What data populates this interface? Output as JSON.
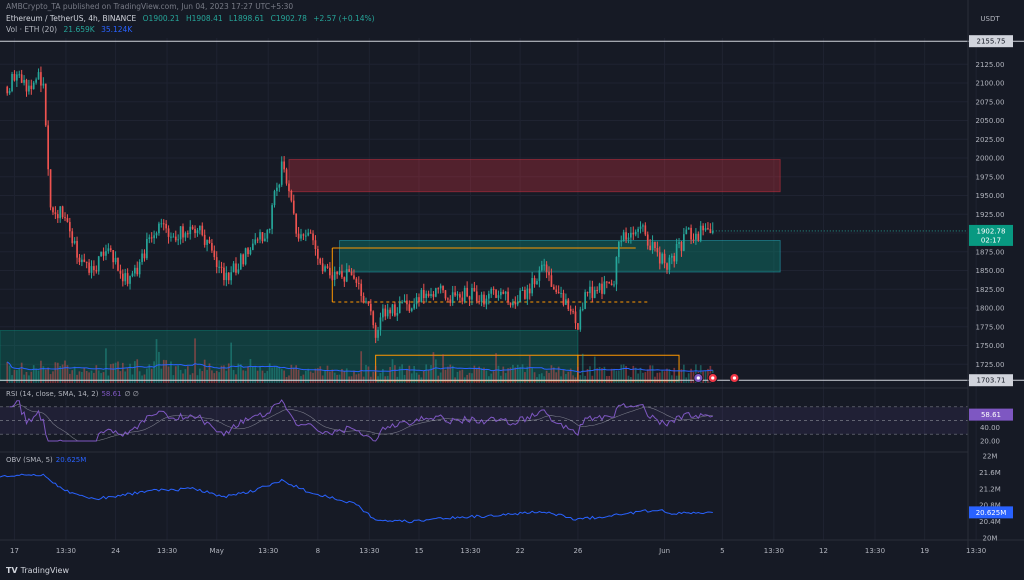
{
  "header": {
    "publisher": "AMBCrypto_TA published on TradingView.com, Jun 04, 2023 17:27 UTC+5:30",
    "symbol": "Ethereum / TetherUS, 4h, BINANCE",
    "ohlc": {
      "o": "O1900.21",
      "h": "H1908.41",
      "l": "L1898.61",
      "c": "C1902.78",
      "chg": "+2.57 (+0.14%)"
    },
    "volume": {
      "label": "Vol · ETH (20)",
      "v1": "21.659K",
      "v2": "35.124K"
    }
  },
  "currency": "USDT",
  "price_badges": {
    "current": "1902.78",
    "countdown": "02:17",
    "high_line": "2155.75",
    "low_line": "1703.71"
  },
  "rsi": {
    "label": "RSI (14, close, SMA, 14, 2)",
    "value": "58.61",
    "extra": "∅ ∅",
    "ticks": [
      "60.00",
      "40.00",
      "20.00"
    ]
  },
  "obv": {
    "label": "OBV (SMA, 5)",
    "value": "20.625M",
    "ticks": [
      "22M",
      "21.6M",
      "21.2M",
      "20.8M",
      "20.4M",
      "20M"
    ]
  },
  "footer": {
    "brand": "TradingView"
  },
  "colors": {
    "bull": "#26a69a",
    "bear": "#ef5350",
    "supply": "#f23645",
    "demand": "#089981",
    "orange": "#ff9800",
    "rsi": "#7e57c2",
    "obv": "#2962ff"
  },
  "chart_data": {
    "type": "candlestick",
    "interval": "4h",
    "y_range": [
      1700,
      2160
    ],
    "price_ticks": [
      2125,
      2100,
      2075,
      2050,
      2025,
      2000,
      1975,
      1950,
      1925,
      1900,
      1875,
      1850,
      1825,
      1800,
      1775,
      1750,
      1725
    ],
    "x_ticks": [
      "17",
      "13:30",
      "24",
      "13:30",
      "May",
      "13:30",
      "8",
      "13:30",
      "15",
      "13:30",
      "22",
      "26",
      "Jun",
      "5",
      "13:30",
      "12",
      "13:30",
      "19",
      "13:30"
    ],
    "waypoints": [
      [
        "2023-04-16 12:00",
        2095
      ],
      [
        "2023-04-17 00:00",
        2110
      ],
      [
        "2023-04-18 00:00",
        2095
      ],
      [
        "2023-04-19 00:00",
        2110
      ],
      [
        "2023-04-19 12:00",
        1935
      ],
      [
        "2023-04-20 12:00",
        1920
      ],
      [
        "2023-04-21 12:00",
        1860
      ],
      [
        "2023-04-22 12:00",
        1855
      ],
      [
        "2023-04-23 12:00",
        1875
      ],
      [
        "2023-04-24 12:00",
        1840
      ],
      [
        "2023-04-25 12:00",
        1845
      ],
      [
        "2023-04-26 12:00",
        1900
      ],
      [
        "2023-04-27 00:00",
        1910
      ],
      [
        "2023-04-28 00:00",
        1895
      ],
      [
        "2023-04-29 12:00",
        1905
      ],
      [
        "2023-04-30 12:00",
        1890
      ],
      [
        "2023-05-01 12:00",
        1840
      ],
      [
        "2023-05-02 12:00",
        1860
      ],
      [
        "2023-05-03 12:00",
        1885
      ],
      [
        "2023-05-04 12:00",
        1900
      ],
      [
        "2023-05-05 12:00",
        1990
      ],
      [
        "2023-05-06 00:00",
        1955
      ],
      [
        "2023-05-06 12:00",
        1905
      ],
      [
        "2023-05-07 12:00",
        1895
      ],
      [
        "2023-05-08 12:00",
        1850
      ],
      [
        "2023-05-09 12:00",
        1845
      ],
      [
        "2023-05-10 12:00",
        1840
      ],
      [
        "2023-05-11 12:00",
        1800
      ],
      [
        "2023-05-12 00:00",
        1770
      ],
      [
        "2023-05-12 12:00",
        1790
      ],
      [
        "2023-05-13 12:00",
        1800
      ],
      [
        "2023-05-14 12:00",
        1805
      ],
      [
        "2023-05-15 12:00",
        1825
      ],
      [
        "2023-05-16 12:00",
        1820
      ],
      [
        "2023-05-17 12:00",
        1815
      ],
      [
        "2023-05-18 12:00",
        1820
      ],
      [
        "2023-05-19 12:00",
        1815
      ],
      [
        "2023-05-20 12:00",
        1815
      ],
      [
        "2023-05-21 12:00",
        1810
      ],
      [
        "2023-05-22 12:00",
        1815
      ],
      [
        "2023-05-23 12:00",
        1860
      ],
      [
        "2023-05-24 12:00",
        1820
      ],
      [
        "2023-05-25 12:00",
        1800
      ],
      [
        "2023-05-26 00:00",
        1780
      ],
      [
        "2023-05-26 12:00",
        1815
      ],
      [
        "2023-05-27 12:00",
        1825
      ],
      [
        "2023-05-28 12:00",
        1840
      ],
      [
        "2023-05-29 00:00",
        1900
      ],
      [
        "2023-05-29 12:00",
        1895
      ],
      [
        "2023-05-30 12:00",
        1900
      ],
      [
        "2023-05-31 12:00",
        1870
      ],
      [
        "2023-06-01 00:00",
        1860
      ],
      [
        "2023-06-01 12:00",
        1865
      ],
      [
        "2023-06-02 12:00",
        1895
      ],
      [
        "2023-06-03 12:00",
        1900
      ],
      [
        "2023-06-04 08:00",
        1902.78
      ]
    ],
    "zones": [
      {
        "name": "supply-zone",
        "from": "2023-05-06 00:00",
        "to": "2023-06-09 00:00",
        "low": 1955,
        "high": 1998
      },
      {
        "name": "demand-zone",
        "from": "2023-05-09 12:00",
        "to": "2023-06-09 00:00",
        "low": 1848,
        "high": 1890
      },
      {
        "name": "lower-demand-zone",
        "from": "2023-04-16 00:00",
        "to": "2023-05-26 00:00",
        "low": 1703,
        "high": 1770
      }
    ],
    "range_box": {
      "from": "2023-05-09 00:00",
      "to": "2023-05-30 00:00",
      "high": 1880,
      "mid": 1808
    },
    "events": [
      "2023-06-03 08:00",
      "2023-06-04 08:00",
      "2023-06-05 20:00"
    ]
  }
}
